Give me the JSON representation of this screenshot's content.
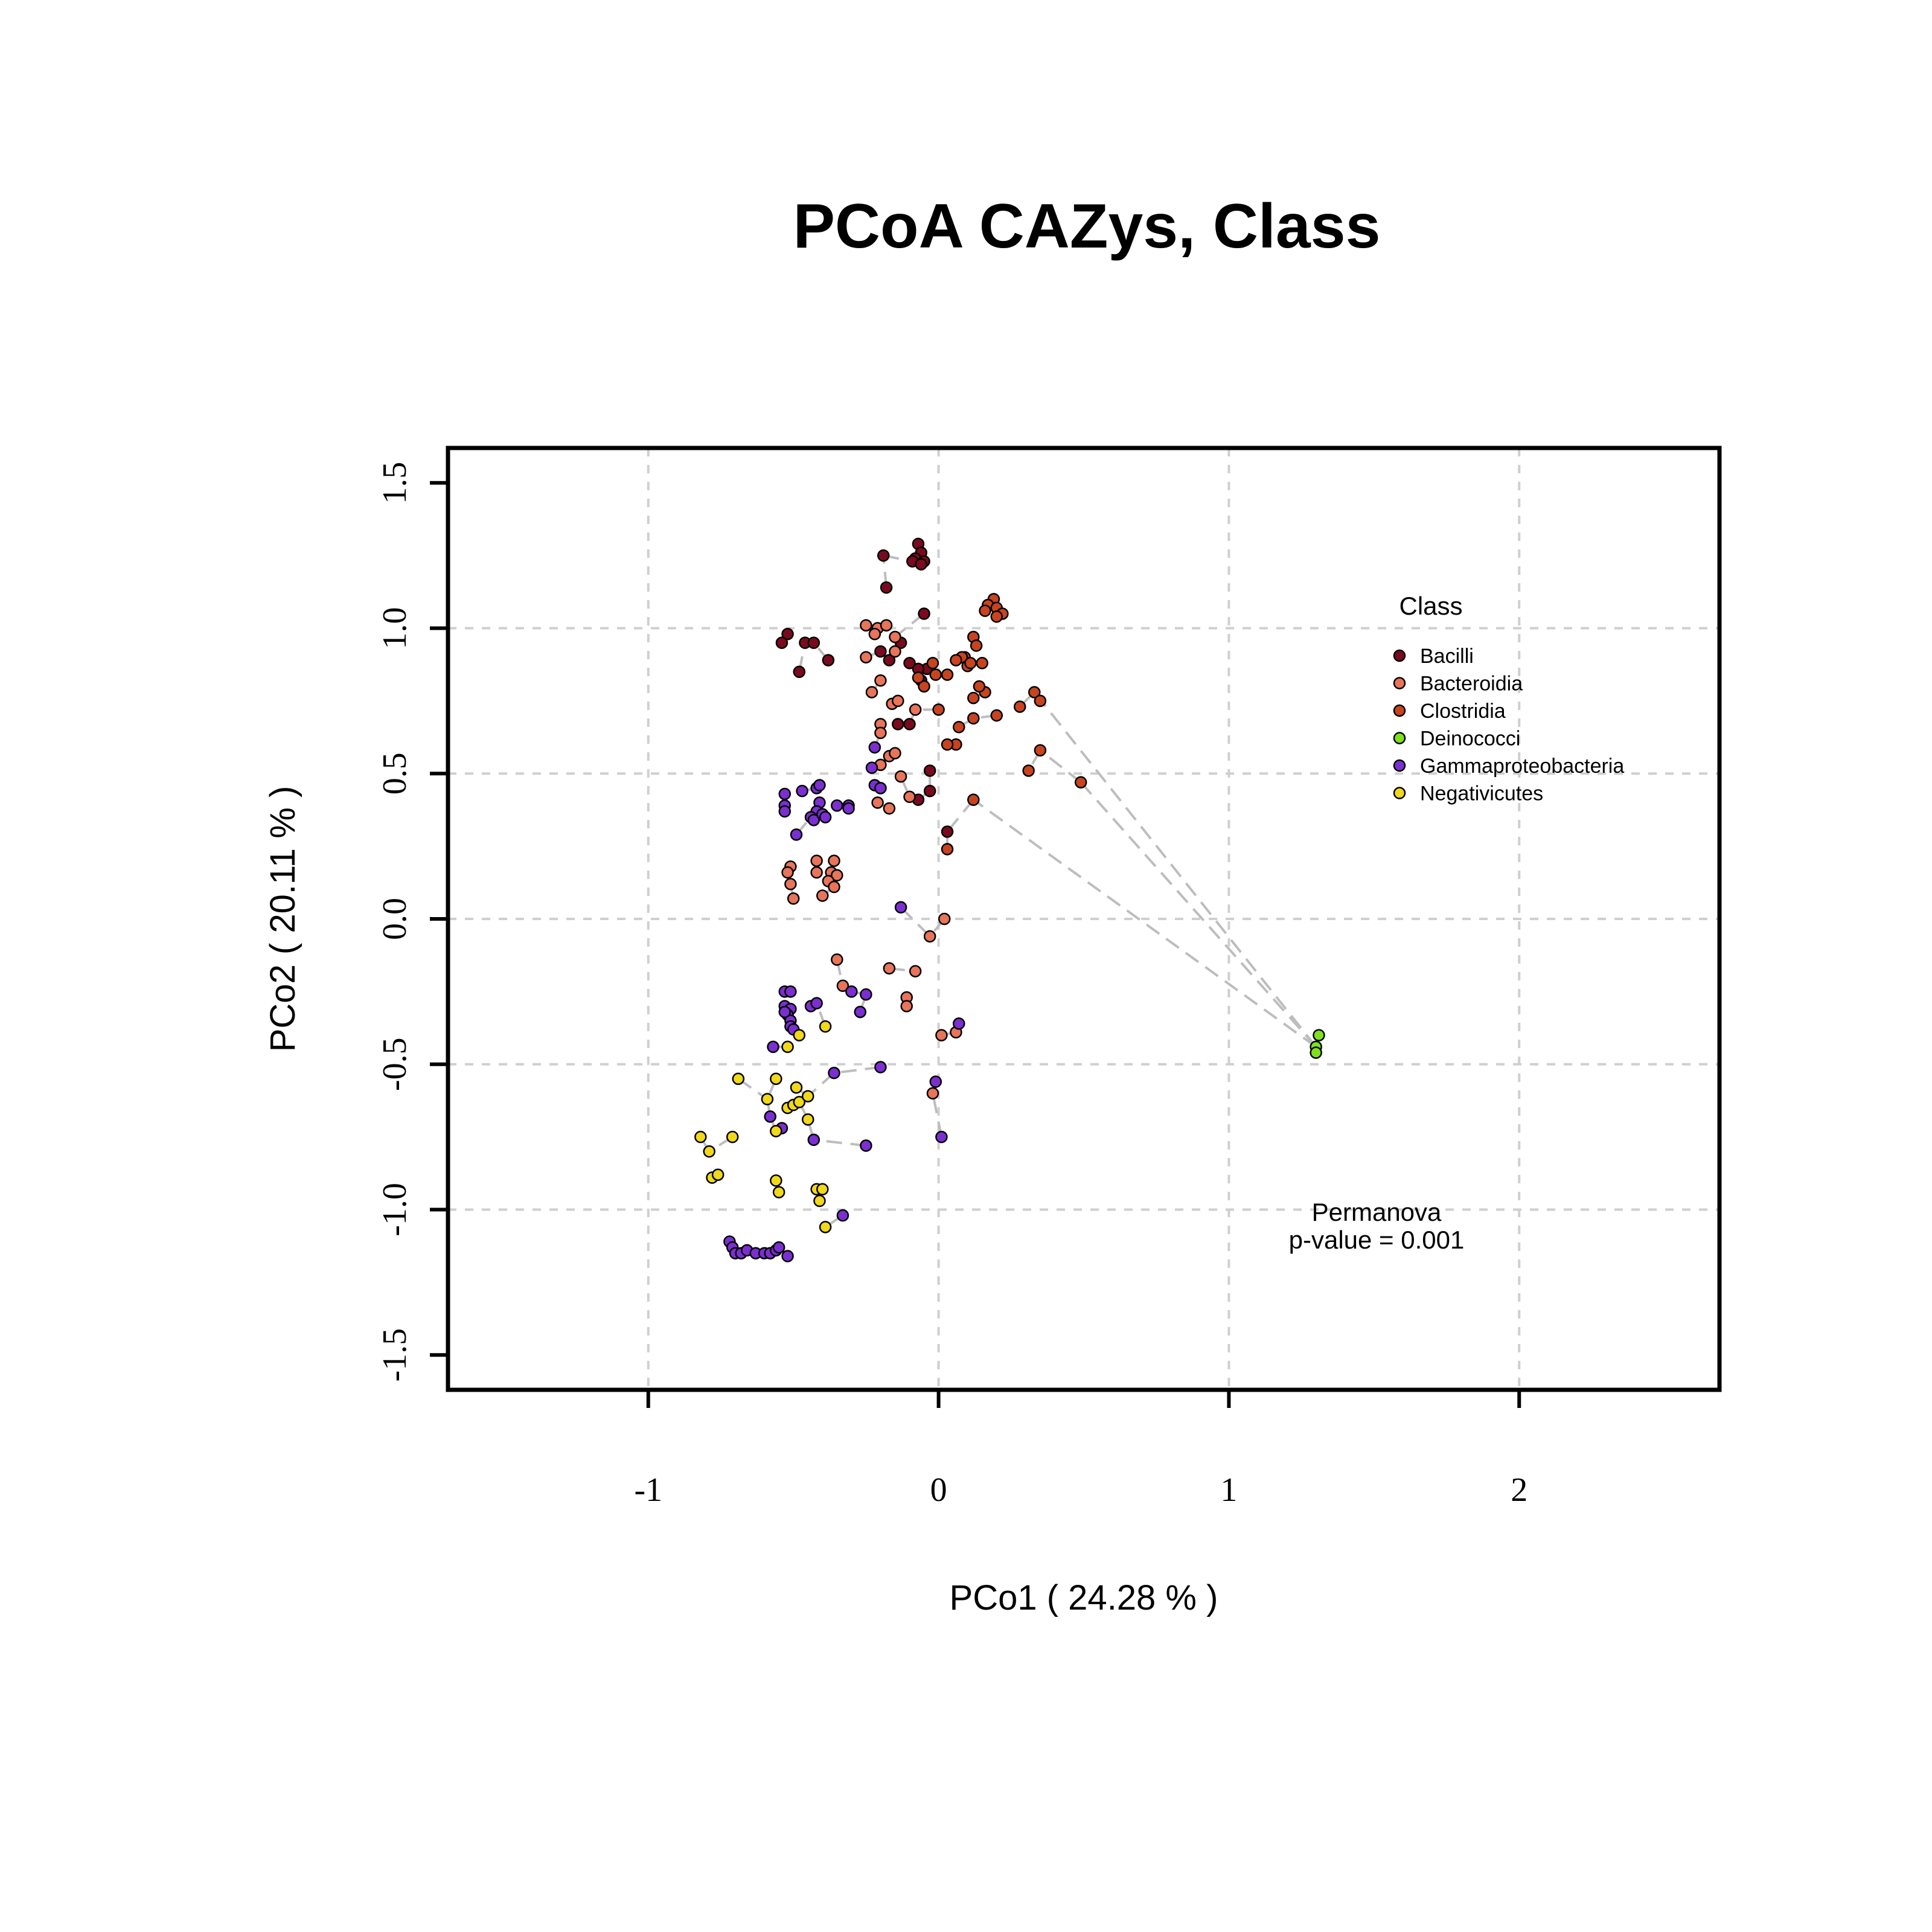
{
  "chart_data": {
    "type": "scatter",
    "title": "PCoA CAZys, Class",
    "xlabel": "PCo1 ( 24.28 % )",
    "ylabel": "PCo2 ( 20.11 % )",
    "xlim": [
      -1.69,
      2.69
    ],
    "ylim": [
      -1.62,
      1.62
    ],
    "xticks": [
      -1,
      0,
      1,
      2
    ],
    "yticks": [
      -1.5,
      -1.0,
      -0.5,
      0.0,
      0.5,
      1.0,
      1.5
    ],
    "xtick_labels": [
      "-1",
      "0",
      "1",
      "2"
    ],
    "ytick_labels": [
      "-1.5",
      "-1.0",
      "-0.5",
      "0.0",
      "0.5",
      "1.0",
      "1.5"
    ],
    "grid": true,
    "legend": {
      "title": "Class",
      "placement": "top-right"
    },
    "annotation": {
      "line1": "Permanova",
      "line2": "p-value = 0.001"
    },
    "series": [
      {
        "name": "Bacilli",
        "color": "#7B0A1E",
        "points": [
          [
            -0.07,
            1.29
          ],
          [
            -0.06,
            1.26
          ],
          [
            -0.08,
            1.24
          ],
          [
            -0.09,
            1.23
          ],
          [
            -0.05,
            1.23
          ],
          [
            -0.19,
            1.25
          ],
          [
            -0.06,
            1.22
          ],
          [
            -0.18,
            1.14
          ],
          [
            -0.05,
            1.05
          ],
          [
            -0.52,
            0.98
          ],
          [
            -0.54,
            0.95
          ],
          [
            -0.46,
            0.95
          ],
          [
            -0.43,
            0.95
          ],
          [
            -0.38,
            0.89
          ],
          [
            -0.48,
            0.85
          ],
          [
            -0.17,
            0.89
          ],
          [
            -0.2,
            0.92
          ],
          [
            -0.13,
            0.95
          ],
          [
            -0.04,
            0.86
          ],
          [
            -0.07,
            0.86
          ],
          [
            -0.1,
            0.88
          ],
          [
            -0.06,
            0.82
          ],
          [
            -0.1,
            0.67
          ],
          [
            -0.14,
            0.67
          ],
          [
            -0.03,
            0.51
          ],
          [
            -0.07,
            0.41
          ],
          [
            -0.03,
            0.44
          ],
          [
            0.03,
            0.3
          ]
        ]
      },
      {
        "name": "Bacteroidia",
        "color": "#E8745A",
        "points": [
          [
            -0.25,
            1.01
          ],
          [
            -0.21,
            1.0
          ],
          [
            -0.18,
            1.01
          ],
          [
            -0.15,
            0.97
          ],
          [
            -0.22,
            0.98
          ],
          [
            -0.15,
            0.92
          ],
          [
            -0.25,
            0.9
          ],
          [
            -0.2,
            0.82
          ],
          [
            -0.23,
            0.78
          ],
          [
            -0.16,
            0.74
          ],
          [
            -0.14,
            0.75
          ],
          [
            -0.08,
            0.72
          ],
          [
            -0.2,
            0.67
          ],
          [
            -0.2,
            0.64
          ],
          [
            -0.17,
            0.56
          ],
          [
            -0.15,
            0.57
          ],
          [
            -0.2,
            0.53
          ],
          [
            -0.2,
            0.45
          ],
          [
            -0.17,
            0.38
          ],
          [
            -0.13,
            0.49
          ],
          [
            -0.1,
            0.42
          ],
          [
            -0.21,
            0.4
          ],
          [
            -0.51,
            0.18
          ],
          [
            -0.52,
            0.16
          ],
          [
            -0.51,
            0.12
          ],
          [
            -0.5,
            0.07
          ],
          [
            -0.42,
            0.2
          ],
          [
            -0.42,
            0.16
          ],
          [
            -0.36,
            0.2
          ],
          [
            -0.37,
            0.16
          ],
          [
            -0.35,
            0.15
          ],
          [
            -0.38,
            0.13
          ],
          [
            -0.36,
            0.11
          ],
          [
            -0.4,
            0.08
          ],
          [
            0.02,
            0.0
          ],
          [
            -0.03,
            -0.06
          ],
          [
            -0.35,
            -0.14
          ],
          [
            -0.17,
            -0.17
          ],
          [
            -0.08,
            -0.18
          ],
          [
            -0.33,
            -0.23
          ],
          [
            -0.11,
            -0.27
          ],
          [
            -0.11,
            -0.3
          ],
          [
            0.01,
            -0.4
          ],
          [
            0.06,
            -0.39
          ],
          [
            -0.02,
            -0.6
          ]
        ]
      },
      {
        "name": "Clostridia",
        "color": "#C8441E",
        "points": [
          [
            0.19,
            1.1
          ],
          [
            0.17,
            1.08
          ],
          [
            0.16,
            1.06
          ],
          [
            0.2,
            1.07
          ],
          [
            0.22,
            1.05
          ],
          [
            0.2,
            1.04
          ],
          [
            0.12,
            0.97
          ],
          [
            0.13,
            0.94
          ],
          [
            0.15,
            0.88
          ],
          [
            0.09,
            0.9
          ],
          [
            0.08,
            0.9
          ],
          [
            0.06,
            0.89
          ],
          [
            0.1,
            0.87
          ],
          [
            0.11,
            0.88
          ],
          [
            0.03,
            0.84
          ],
          [
            -0.01,
            0.84
          ],
          [
            -0.05,
            0.8
          ],
          [
            -0.07,
            0.83
          ],
          [
            -0.02,
            0.88
          ],
          [
            0.12,
            0.76
          ],
          [
            0.16,
            0.78
          ],
          [
            0.14,
            0.8
          ],
          [
            0.33,
            0.78
          ],
          [
            0.35,
            0.75
          ],
          [
            0.28,
            0.73
          ],
          [
            0.2,
            0.7
          ],
          [
            0.12,
            0.69
          ],
          [
            0.07,
            0.66
          ],
          [
            0.0,
            0.72
          ],
          [
            0.06,
            0.6
          ],
          [
            0.03,
            0.6
          ],
          [
            0.35,
            0.58
          ],
          [
            0.31,
            0.51
          ],
          [
            0.49,
            0.47
          ],
          [
            0.12,
            0.41
          ],
          [
            0.03,
            0.24
          ]
        ]
      },
      {
        "name": "Deinococci",
        "color": "#7FE01C",
        "points": [
          [
            1.31,
            -0.4
          ],
          [
            1.3,
            -0.44
          ],
          [
            1.3,
            -0.46
          ]
        ]
      },
      {
        "name": "Gammaproteobacteria",
        "color": "#7B2FD0",
        "points": [
          [
            -0.22,
            0.59
          ],
          [
            -0.23,
            0.52
          ],
          [
            -0.22,
            0.46
          ],
          [
            -0.2,
            0.45
          ],
          [
            -0.53,
            0.43
          ],
          [
            -0.53,
            0.39
          ],
          [
            -0.53,
            0.37
          ],
          [
            -0.47,
            0.44
          ],
          [
            -0.42,
            0.45
          ],
          [
            -0.41,
            0.46
          ],
          [
            -0.41,
            0.4
          ],
          [
            -0.42,
            0.37
          ],
          [
            -0.44,
            0.35
          ],
          [
            -0.43,
            0.34
          ],
          [
            -0.4,
            0.36
          ],
          [
            -0.39,
            0.35
          ],
          [
            -0.31,
            0.39
          ],
          [
            -0.31,
            0.38
          ],
          [
            -0.35,
            0.39
          ],
          [
            -0.49,
            0.29
          ],
          [
            -0.13,
            0.04
          ],
          [
            -0.53,
            -0.25
          ],
          [
            -0.51,
            -0.25
          ],
          [
            -0.53,
            -0.3
          ],
          [
            -0.51,
            -0.31
          ],
          [
            -0.52,
            -0.33
          ],
          [
            -0.51,
            -0.35
          ],
          [
            -0.51,
            -0.37
          ],
          [
            -0.5,
            -0.38
          ],
          [
            -0.53,
            -0.32
          ],
          [
            -0.44,
            -0.3
          ],
          [
            -0.42,
            -0.29
          ],
          [
            -0.3,
            -0.25
          ],
          [
            -0.25,
            -0.26
          ],
          [
            -0.27,
            -0.32
          ],
          [
            -0.57,
            -0.44
          ],
          [
            -0.36,
            -0.53
          ],
          [
            -0.2,
            -0.51
          ],
          [
            0.07,
            -0.36
          ],
          [
            -0.01,
            -0.56
          ],
          [
            -0.58,
            -0.68
          ],
          [
            -0.54,
            -0.72
          ],
          [
            -0.43,
            -0.76
          ],
          [
            -0.25,
            -0.78
          ],
          [
            0.01,
            -0.75
          ],
          [
            -0.33,
            -1.02
          ],
          [
            -0.72,
            -1.11
          ],
          [
            -0.71,
            -1.13
          ],
          [
            -0.7,
            -1.15
          ],
          [
            -0.68,
            -1.15
          ],
          [
            -0.66,
            -1.14
          ],
          [
            -0.63,
            -1.15
          ],
          [
            -0.6,
            -1.15
          ],
          [
            -0.58,
            -1.15
          ],
          [
            -0.56,
            -1.14
          ],
          [
            -0.55,
            -1.13
          ],
          [
            -0.52,
            -1.16
          ]
        ]
      },
      {
        "name": "Negativicutes",
        "color": "#F0D81A",
        "points": [
          [
            -0.82,
            -0.75
          ],
          [
            -0.79,
            -0.8
          ],
          [
            -0.78,
            -0.89
          ],
          [
            -0.76,
            -0.88
          ],
          [
            -0.71,
            -0.75
          ],
          [
            -0.69,
            -0.55
          ],
          [
            -0.59,
            -0.62
          ],
          [
            -0.56,
            -0.55
          ],
          [
            -0.56,
            -0.73
          ],
          [
            -0.56,
            -0.9
          ],
          [
            -0.55,
            -0.94
          ],
          [
            -0.52,
            -0.65
          ],
          [
            -0.5,
            -0.64
          ],
          [
            -0.49,
            -0.58
          ],
          [
            -0.48,
            -0.63
          ],
          [
            -0.45,
            -0.61
          ],
          [
            -0.45,
            -0.69
          ],
          [
            -0.52,
            -0.44
          ],
          [
            -0.48,
            -0.4
          ],
          [
            -0.39,
            -0.37
          ],
          [
            -0.42,
            -0.93
          ],
          [
            -0.4,
            -0.93
          ],
          [
            -0.41,
            -0.97
          ],
          [
            -0.39,
            -1.06
          ]
        ]
      }
    ]
  }
}
